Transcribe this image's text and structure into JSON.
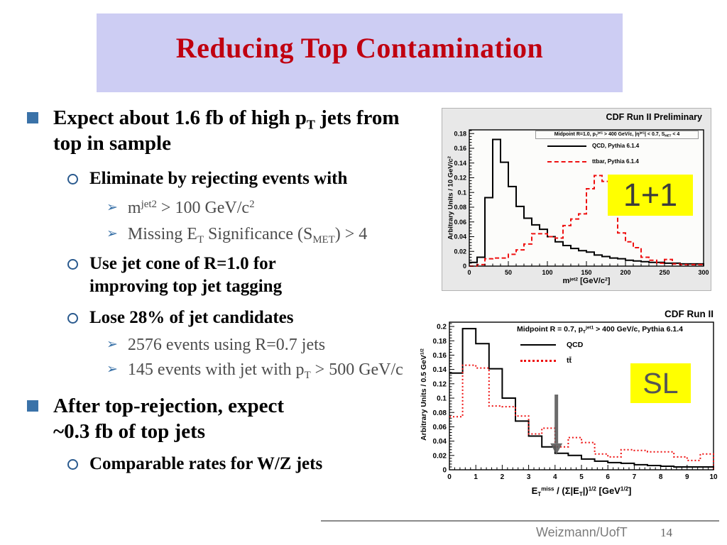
{
  "colors": {
    "title_red": "#c00010",
    "title_bg": "#cdcdf3",
    "bullet_blue": "#3a72a8",
    "circle_blue": "#2a5a8e",
    "gray_text": "#4d4d4d",
    "qcd": "#000000",
    "ttbar": "#ee1111",
    "highlight": "#ffff00",
    "arrow": "#5b5b5b"
  },
  "slide": {
    "title": "Reducing Top Contamination",
    "footer": {
      "affiliation": "Weizmann/UofT",
      "page": "14"
    }
  },
  "bullets": [
    {
      "level": 1,
      "marker": "square",
      "text": "Expect about 1.6 fb of high p_{T} jets from top in sample"
    },
    {
      "level": 2,
      "marker": "circle",
      "text": "Eliminate by rejecting events with"
    },
    {
      "level": 3,
      "marker": "arrow",
      "text": "m^{jet2} > 100 GeV/c^{2}"
    },
    {
      "level": 3,
      "marker": "arrow",
      "text": "Missing E_{T} Significance (S_{MET}) > 4"
    },
    {
      "level": 2,
      "marker": "circle",
      "text": "Use jet cone of R=1.0 for improving top jet tagging"
    },
    {
      "level": 2,
      "marker": "circle",
      "text": "Lose 28% of jet candidates"
    },
    {
      "level": 3,
      "marker": "arrow",
      "text": "2576 events using R=0.7 jets"
    },
    {
      "level": 3,
      "marker": "arrow",
      "text": "145 events with jet with p_{T} > 500 GeV/c"
    },
    {
      "level": 1,
      "marker": "square",
      "text": "After top-rejection, expect ~0.3 fb of top jets"
    },
    {
      "level": 2,
      "marker": "circle",
      "text": "Comparable rates for W/Z jets"
    }
  ],
  "chart_data": [
    {
      "type": "histogram-step",
      "title": "CDF Run II Preliminary",
      "condition_label": "Midpoint R=1.0, p_{T}^{jet1} > 400 GeV/c, |η^{jet1}| < 0.7, S_{MET} < 4",
      "xlabel": "m^{jet2} [GeV/c^{2}]",
      "ylabel": "Arbitrary Units / 10 GeV/c^{2}",
      "xlim": [
        0,
        300
      ],
      "ylim": [
        0,
        0.185
      ],
      "bin_width": 10,
      "x_ticks": [
        0,
        50,
        100,
        150,
        200,
        250,
        300
      ],
      "x_tick_labels": [
        "0",
        "50",
        "100",
        "150",
        "200",
        "250",
        "300"
      ],
      "y_ticks": [
        0,
        0.02,
        0.04,
        0.06,
        0.08,
        0.1,
        0.12,
        0.14,
        0.16,
        0.18
      ],
      "y_tick_labels": [
        "0",
        "0.02",
        "0.04",
        "0.06",
        "0.08",
        "0.1",
        "0.12",
        "0.14",
        "0.16",
        "0.18"
      ],
      "annotation": "1+1",
      "series": [
        {
          "name": "QCD, Pythia 6.1.4",
          "style": "solid",
          "color": "#000000",
          "values": [
            0.005,
            0.012,
            0.093,
            0.172,
            0.141,
            0.108,
            0.081,
            0.065,
            0.056,
            0.05,
            0.04,
            0.033,
            0.028,
            0.024,
            0.021,
            0.019,
            0.015,
            0.013,
            0.011,
            0.01,
            0.008,
            0.007,
            0.006,
            0.005,
            0.005,
            0.004,
            0.004,
            0.003,
            0.003,
            0.003
          ]
        },
        {
          "name": "ttbar, Pythia 6.1.4",
          "style": "dashed",
          "color": "#ee1111",
          "values": [
            0.0,
            0.002,
            0.01,
            0.011,
            0.011,
            0.016,
            0.022,
            0.03,
            0.044,
            0.044,
            0.04,
            0.038,
            0.055,
            0.064,
            0.071,
            0.105,
            0.123,
            0.115,
            0.075,
            0.045,
            0.033,
            0.025,
            0.012,
            0.008,
            0.004,
            0.009,
            0.003,
            0.002,
            0.002,
            0.002
          ]
        }
      ]
    },
    {
      "type": "histogram-step",
      "title": "CDF Run II",
      "condition_label": "Midpoint R = 0.7, p_{T}^{jet1} > 400 GeV/c, Pythia 6.1.4",
      "xlabel": "E_{T}^{miss} / (Σ|E_{T}|)^{1/2} [GeV^{1/2}]",
      "ylabel": "Arbitrary Units / 0.5 GeV^{1/2}",
      "xlim": [
        0,
        10
      ],
      "ylim": [
        0,
        0.206
      ],
      "bin_width": 0.5,
      "x_ticks": [
        0,
        1,
        2,
        3,
        4,
        5,
        6,
        7,
        8,
        9,
        10
      ],
      "x_tick_labels": [
        "0",
        "1",
        "2",
        "3",
        "4",
        "5",
        "6",
        "7",
        "8",
        "9",
        "10"
      ],
      "y_ticks": [
        0,
        0.02,
        0.04,
        0.06,
        0.08,
        0.1,
        0.12,
        0.14,
        0.16,
        0.18,
        0.2
      ],
      "y_tick_labels": [
        "0",
        "0.02",
        "0.04",
        "0.06",
        "0.08",
        "0.1",
        "0.12",
        "0.14",
        "0.16",
        "0.18",
        "0.2"
      ],
      "annotation": "SL",
      "cut_arrow": {
        "x": 4.05,
        "from": 0.105,
        "to": 0.021
      },
      "series": [
        {
          "name": "QCD",
          "style": "solid",
          "color": "#000000",
          "values": [
            0.135,
            0.197,
            0.176,
            0.141,
            0.1,
            0.068,
            0.047,
            0.032,
            0.023,
            0.02,
            0.015,
            0.012,
            0.01,
            0.009,
            0.007,
            0.006,
            0.005,
            0.004,
            0.004,
            0.004
          ]
        },
        {
          "name": "tt̄",
          "style": "dotted",
          "color": "#ee1111",
          "values": [
            0.074,
            0.146,
            0.142,
            0.089,
            0.088,
            0.075,
            0.05,
            0.058,
            0.032,
            0.045,
            0.038,
            0.022,
            0.018,
            0.028,
            0.027,
            0.025,
            0.025,
            0.018,
            0.013,
            0.022
          ]
        }
      ]
    }
  ]
}
